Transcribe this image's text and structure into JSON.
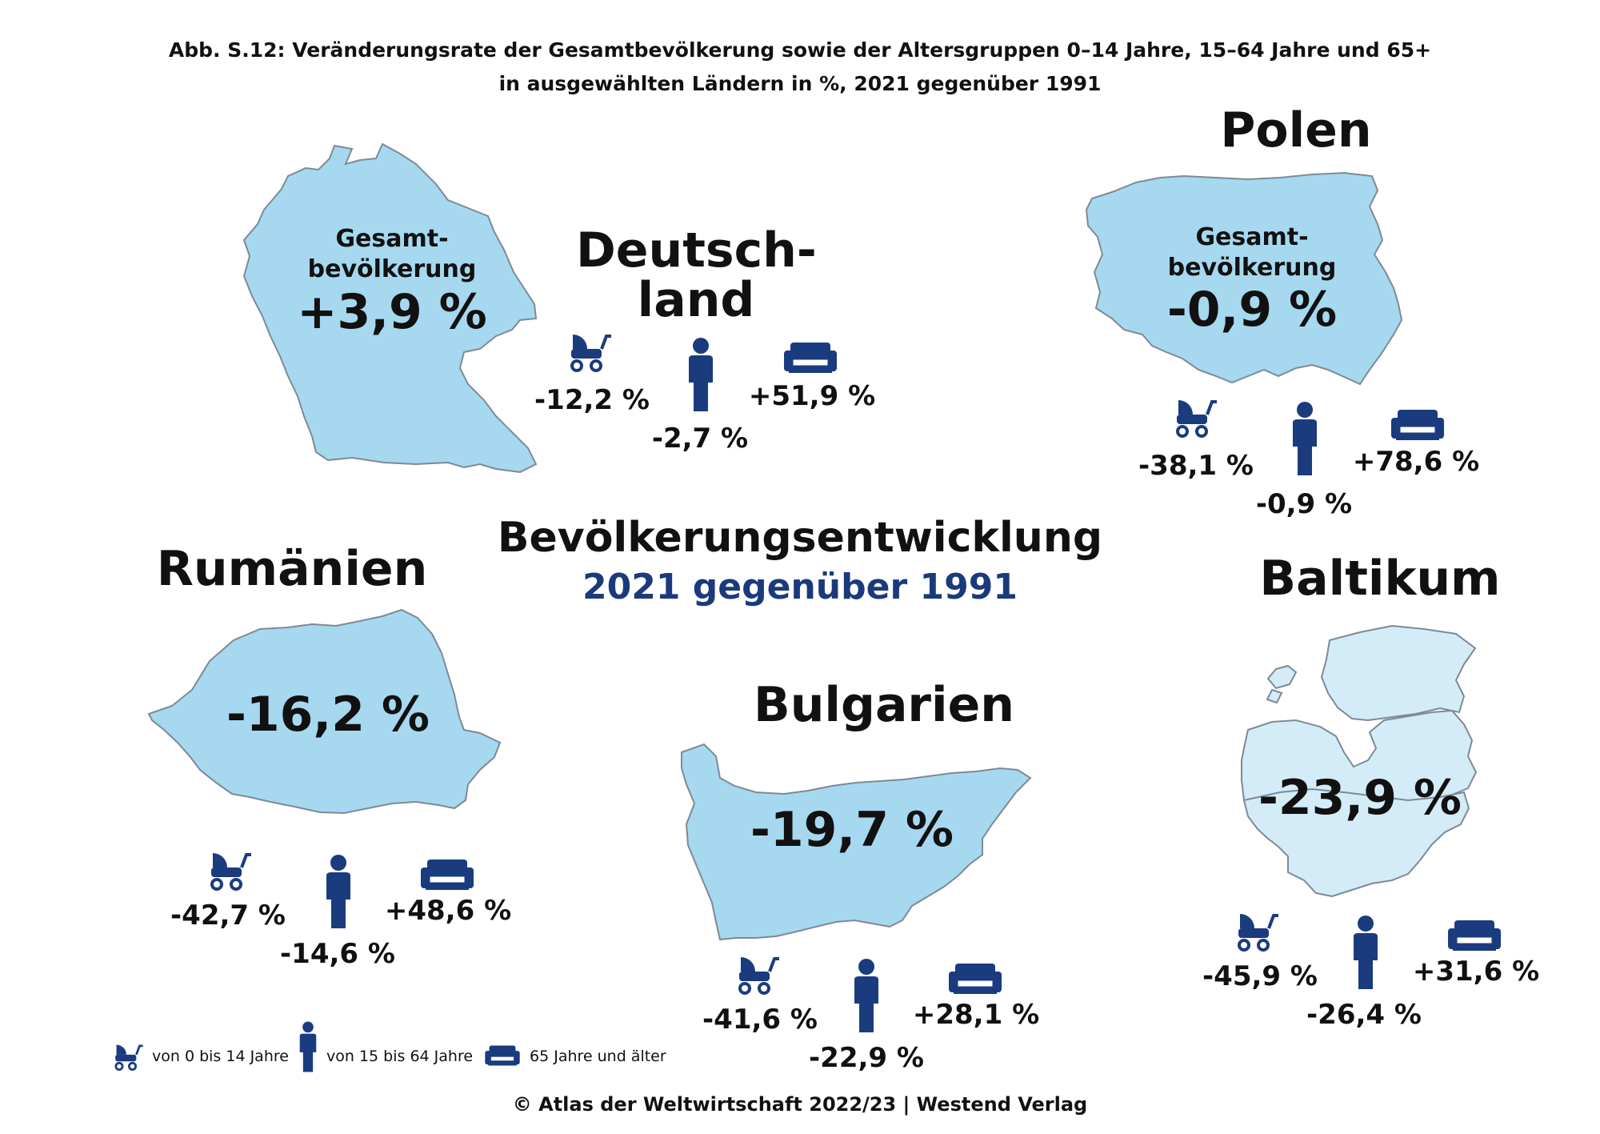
{
  "figure": {
    "title_line1": "Abb. S.12: Veränderungsrate der Gesamtbevölkerung sowie der Altersgruppen 0–14 Jahre, 15–64 Jahre und 65+",
    "title_line2": "in ausgewählten Ländern in %, 2021 gegenüber 1991",
    "main_title": "Bevölkerungsentwicklung",
    "main_subtitle": "2021 gegenüber 1991",
    "credit": "© Atlas der Weltwirtschaft 2022/23 | Westend Verlag"
  },
  "colors": {
    "map_fill": "#a6d8f0",
    "map_fill_light": "#d3ecf8",
    "map_stroke": "#7d8a96",
    "icon": "#1b3b7f",
    "accent": "#1a3a7c"
  },
  "total_label": "Gesamtbevölkerung",
  "countries": {
    "deutschland": {
      "name_line1": "Deutsch-",
      "name_line2": "land",
      "total_label_line1": "Gesamt-",
      "total_label_line2": "bevölkerung",
      "total": "+3,9 %",
      "age_0_14": "-12,2 %",
      "age_15_64": "-2,7 %",
      "age_65_plus": "+51,9 %"
    },
    "polen": {
      "name": "Polen",
      "total_label_line1": "Gesamt-",
      "total_label_line2": "bevölkerung",
      "total": "-0,9 %",
      "age_0_14": "-38,1 %",
      "age_15_64": "-0,9 %",
      "age_65_plus": "+78,6 %"
    },
    "rumaenien": {
      "name": "Rumänien",
      "total": "-16,2 %",
      "age_0_14": "-42,7 %",
      "age_15_64": "-14,6 %",
      "age_65_plus": "+48,6 %"
    },
    "bulgarien": {
      "name": "Bulgarien",
      "total": "-19,7 %",
      "age_0_14": "-41,6 %",
      "age_15_64": "-22,9 %",
      "age_65_plus": "+28,1 %"
    },
    "baltikum": {
      "name": "Baltikum",
      "total": "-23,9 %",
      "age_0_14": "-45,9 %",
      "age_15_64": "-26,4 %",
      "age_65_plus": "+31,6 %"
    }
  },
  "legend": {
    "age_0_14": "von 0 bis 14 Jahre",
    "age_15_64": "von 15 bis 64 Jahre",
    "age_65_plus": "65 Jahre und älter",
    "icons": [
      "stroller-icon",
      "person-icon",
      "sofa-icon"
    ]
  }
}
